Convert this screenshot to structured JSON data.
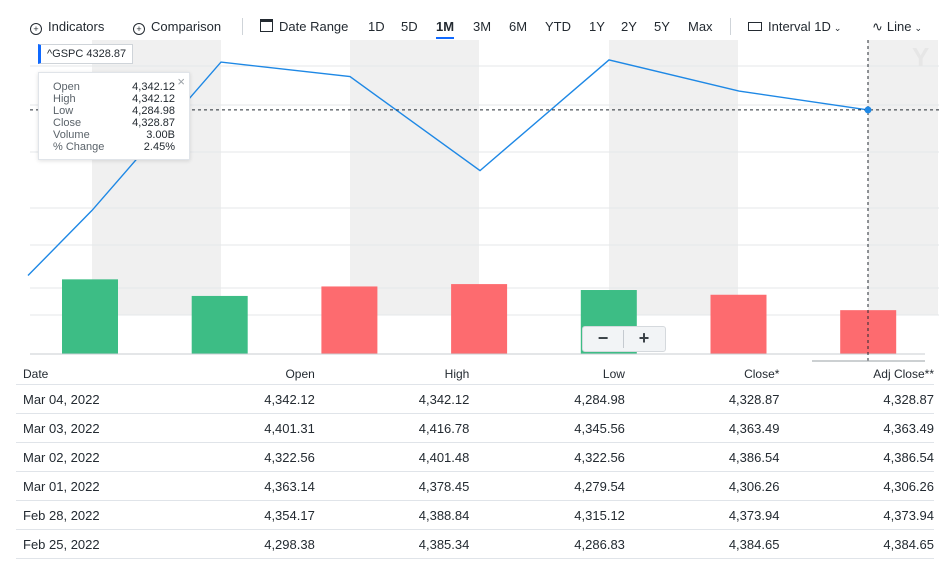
{
  "toolbar": {
    "indicators": "Indicators",
    "comparison": "Comparison",
    "date_range": "Date Range",
    "ranges": [
      "1D",
      "5D",
      "1M",
      "3M",
      "6M",
      "YTD",
      "1Y",
      "2Y",
      "5Y",
      "Max"
    ],
    "active_range": "1M",
    "interval_label": "Interval",
    "interval_value": "1D",
    "chart_type": "Line"
  },
  "ticker_label": "^GSPC 4328.87",
  "tooltip": {
    "rows": [
      {
        "label": "Open",
        "value": "4,342.12"
      },
      {
        "label": "High",
        "value": "4,342.12"
      },
      {
        "label": "Low",
        "value": "4,284.98"
      },
      {
        "label": "Close",
        "value": "4,328.87"
      },
      {
        "label": "Volume",
        "value": "3.00B"
      },
      {
        "label": "% Change",
        "value": "2.45%"
      }
    ]
  },
  "zoom": {
    "minus": "−",
    "plus": "+"
  },
  "logo_text": "Y",
  "colors": {
    "line": "#1e88e5",
    "up": "#3dbd85",
    "down": "#fd6b6f",
    "band": "#f0f0f0",
    "accent": "#0f69ff"
  },
  "chart_data": {
    "type": "line",
    "series": [
      {
        "name": "^GSPC",
        "values": [
          4100,
          4190,
          4395,
          4385,
          4365,
          4300,
          4245,
          4325,
          4398,
          4374,
          4355,
          4328.87
        ]
      }
    ],
    "volume_bars": [
      {
        "value": 3.15,
        "direction": "up"
      },
      {
        "value": 2.45,
        "direction": "up"
      },
      {
        "value": 2.85,
        "direction": "down"
      },
      {
        "value": 2.95,
        "direction": "down"
      },
      {
        "value": 2.7,
        "direction": "up"
      },
      {
        "value": 2.5,
        "direction": "down"
      },
      {
        "value": 1.85,
        "direction": "down"
      }
    ],
    "ylim": [
      4080,
      4420
    ],
    "volume_max": 3.4,
    "crosshair_value": 4328.87
  },
  "table": {
    "headers": [
      "Date",
      "Open",
      "High",
      "Low",
      "Close*",
      "Adj Close**"
    ],
    "rows": [
      [
        "Mar 04, 2022",
        "4,342.12",
        "4,342.12",
        "4,284.98",
        "4,328.87",
        "4,328.87"
      ],
      [
        "Mar 03, 2022",
        "4,401.31",
        "4,416.78",
        "4,345.56",
        "4,363.49",
        "4,363.49"
      ],
      [
        "Mar 02, 2022",
        "4,322.56",
        "4,401.48",
        "4,322.56",
        "4,386.54",
        "4,386.54"
      ],
      [
        "Mar 01, 2022",
        "4,363.14",
        "4,378.45",
        "4,279.54",
        "4,306.26",
        "4,306.26"
      ],
      [
        "Feb 28, 2022",
        "4,354.17",
        "4,388.84",
        "4,315.12",
        "4,373.94",
        "4,373.94"
      ],
      [
        "Feb 25, 2022",
        "4,298.38",
        "4,385.34",
        "4,286.83",
        "4,384.65",
        "4,384.65"
      ]
    ]
  }
}
